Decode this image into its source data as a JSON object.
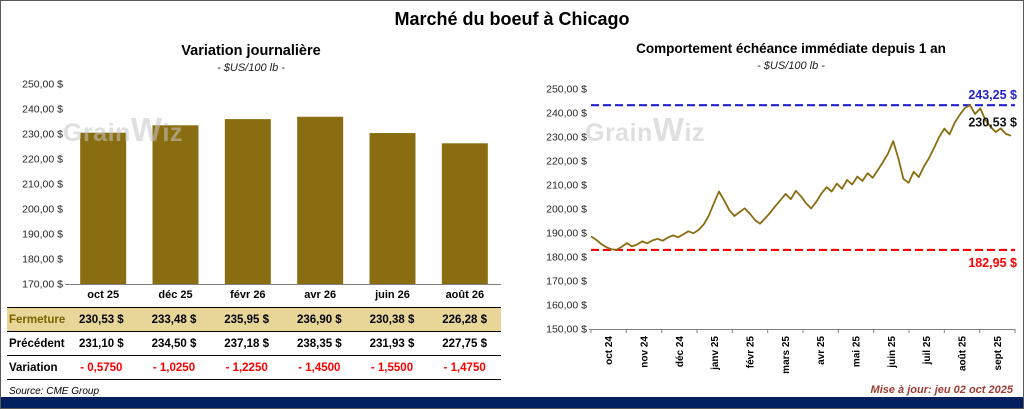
{
  "page": {
    "title": "Marché du boeuf à Chicago",
    "source": "Source: CME Group",
    "updated": "Mise à jour: jeu 02 oct 2025"
  },
  "watermark": "GrainWiz",
  "colors": {
    "series_gold": "#8A6D10",
    "high_blue": "#2222CC",
    "low_red": "#FF0000",
    "last_label_black": "#111111",
    "fermeture_bg": "#E7D698",
    "fermeture_label": "#7F6000",
    "variation_red": "#FF0000",
    "bottom_bar_navy": "#002060",
    "updated_text": "#9E3B33",
    "watermark_gray": "#C6C6C6"
  },
  "chart_data": [
    {
      "type": "bar",
      "title": "Variation journalière",
      "subtitle": "- $US/100 lb -",
      "categories": [
        "oct 25",
        "déc 25",
        "févr 26",
        "avr 26",
        "juin 26",
        "août 26"
      ],
      "values": [
        230.53,
        233.48,
        235.95,
        236.9,
        230.38,
        226.28
      ],
      "ylim": [
        170,
        250
      ],
      "ytick_labels": [
        "250,00 $",
        "240,00 $",
        "230,00 $",
        "220,00 $",
        "210,00 $",
        "200,00 $",
        "190,00 $",
        "180,00 $",
        "170,00 $"
      ],
      "grid": false,
      "legend": false
    },
    {
      "type": "line",
      "title": "Comportement échéance immédiate depuis 1 an",
      "subtitle": "- $US/100 lb -",
      "x_labels": [
        "oct 24",
        "nov 24",
        "déc 24",
        "janv 25",
        "févr 25",
        "mars 25",
        "avr 25",
        "mai 25",
        "juin 25",
        "juil 25",
        "août 25",
        "sept 25"
      ],
      "ylim": [
        150,
        250
      ],
      "ytick_labels": [
        "250,00 $",
        "240,00 $",
        "230,00 $",
        "220,00 $",
        "210,00 $",
        "200,00 $",
        "190,00 $",
        "180,00 $",
        "170,00 $",
        "160,00 $",
        "150,00 $"
      ],
      "high_line": {
        "value": 243.25,
        "label": "243,25 $"
      },
      "low_line": {
        "value": 182.95,
        "label": "182,95 $"
      },
      "last_point": {
        "value": 230.53,
        "label": "230,53 $"
      },
      "values": [
        188.6,
        187.2,
        185.4,
        184.1,
        183.2,
        182.95,
        184.3,
        185.8,
        184.4,
        185.2,
        186.5,
        185.7,
        186.9,
        187.6,
        186.8,
        188.1,
        189.0,
        188.2,
        189.4,
        190.7,
        189.9,
        191.3,
        193.6,
        197.2,
        202.4,
        207.3,
        203.6,
        199.5,
        197.1,
        198.7,
        200.3,
        198.1,
        195.4,
        193.9,
        196.1,
        198.5,
        201.2,
        203.7,
        206.3,
        204.1,
        207.6,
        205.3,
        202.4,
        200.2,
        203.1,
        206.5,
        209.1,
        207.3,
        210.6,
        208.4,
        212.1,
        210.2,
        213.5,
        211.7,
        214.9,
        213.0,
        216.2,
        219.6,
        223.2,
        228.3,
        221.2,
        212.6,
        210.9,
        215.5,
        213.3,
        217.7,
        221.2,
        225.6,
        230.1,
        233.5,
        231.1,
        235.9,
        239.3,
        242.1,
        243.25,
        239.6,
        241.9,
        237.1,
        234.3,
        232.1,
        233.6,
        231.3,
        230.53
      ],
      "grid": false,
      "legend": false
    }
  ],
  "table": {
    "rows": [
      {
        "label": "Fermeture",
        "values": [
          "230,53  $",
          "233,48  $",
          "235,95  $",
          "236,90  $",
          "230,38  $",
          "226,28  $"
        ]
      },
      {
        "label": "Précédent",
        "values": [
          "231,10  $",
          "234,50  $",
          "237,18  $",
          "238,35  $",
          "231,93  $",
          "227,75  $"
        ]
      },
      {
        "label": "Variation",
        "values": [
          "- 0,5750",
          "- 1,0250",
          "- 1,2250",
          "- 1,4500",
          "- 1,5500",
          "- 1,4750"
        ]
      }
    ]
  }
}
